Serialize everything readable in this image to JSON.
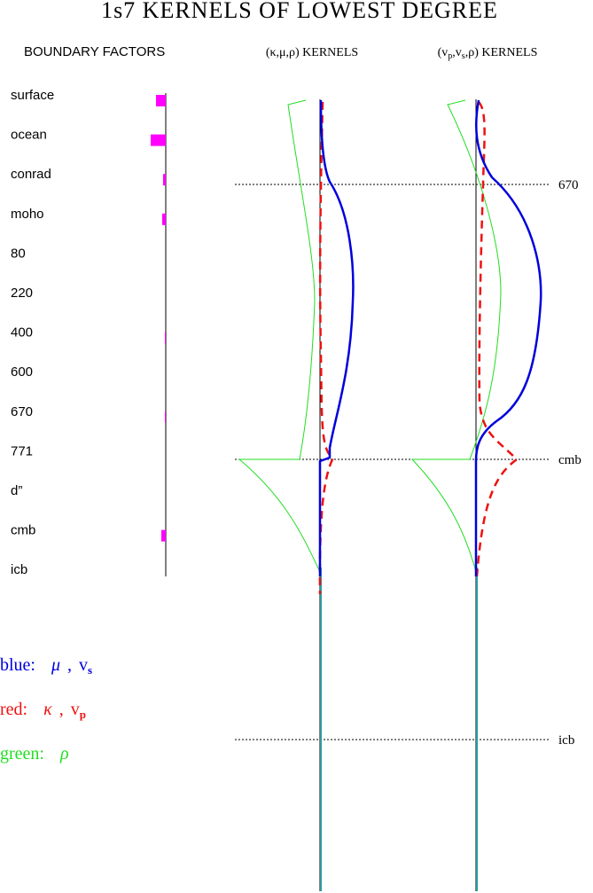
{
  "title": "1s7 KERNELS OF LOWEST DEGREE",
  "boundary_factors": {
    "title": "BOUNDARY FACTORS",
    "items": [
      {
        "label": "surface",
        "value": 11
      },
      {
        "label": "ocean",
        "value": 17
      },
      {
        "label": "conrad",
        "value": 3
      },
      {
        "label": "moho",
        "value": 4
      },
      {
        "label": "80",
        "value": 0
      },
      {
        "label": "220",
        "value": 0
      },
      {
        "label": "400",
        "value": 1
      },
      {
        "label": "600",
        "value": 0
      },
      {
        "label": "670",
        "value": 1
      },
      {
        "label": "771",
        "value": 0
      },
      {
        "label": "d”",
        "value": 0
      },
      {
        "label": "cmb",
        "value": 5
      },
      {
        "label": "icb",
        "value": 0
      }
    ]
  },
  "panels": [
    {
      "title": [
        {
          "text": "(κ,μ,ρ)  KERNELS"
        }
      ]
    },
    {
      "title": [
        {
          "text": "(v"
        },
        {
          "text": "p",
          "sub": true
        },
        {
          "text": ",v"
        },
        {
          "text": "s",
          "sub": true
        },
        {
          "text": ",ρ)  KERNELS"
        }
      ]
    }
  ],
  "depth_markers": [
    "670",
    "cmb",
    "icb"
  ],
  "legend": [
    {
      "label": "blue:",
      "symbol": "μ",
      "velocity": "v",
      "subscript": "s",
      "color": "#0000dd"
    },
    {
      "label": "red:",
      "symbol": "κ",
      "velocity": "v",
      "subscript": "p",
      "color": "#ee1111"
    },
    {
      "label": "green:",
      "symbol": "ρ",
      "color": "#22dd22"
    }
  ]
}
